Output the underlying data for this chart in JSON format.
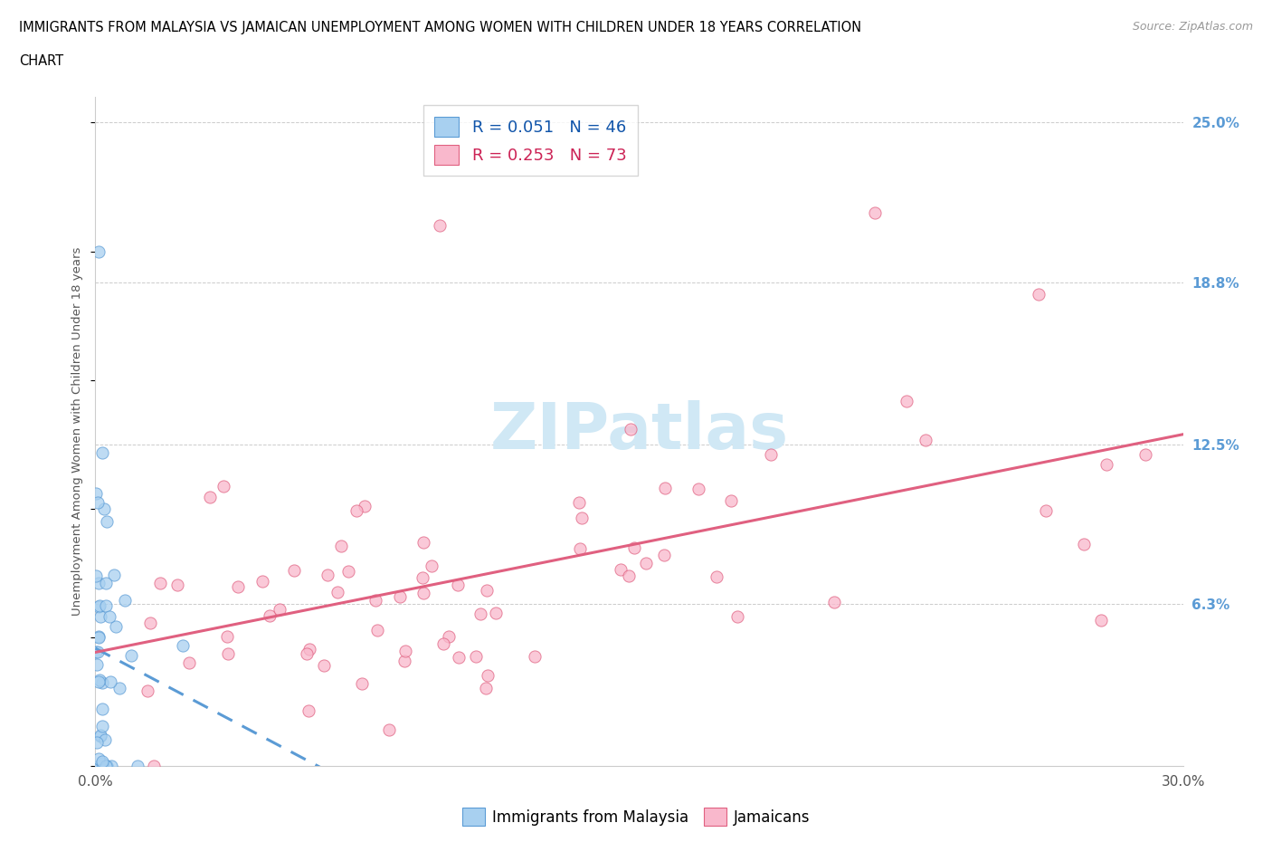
{
  "title_line1": "IMMIGRANTS FROM MALAYSIA VS JAMAICAN UNEMPLOYMENT AMONG WOMEN WITH CHILDREN UNDER 18 YEARS CORRELATION",
  "title_line2": "CHART",
  "source": "Source: ZipAtlas.com",
  "ylabel": "Unemployment Among Women with Children Under 18 years",
  "xlim": [
    0.0,
    0.3
  ],
  "ylim": [
    0.0,
    0.26
  ],
  "yticks": [
    0.063,
    0.125,
    0.188,
    0.25
  ],
  "ytick_labels": [
    "6.3%",
    "12.5%",
    "18.8%",
    "25.0%"
  ],
  "r_malaysia": 0.051,
  "n_malaysia": 46,
  "r_jamaican": 0.253,
  "n_jamaican": 73,
  "color_malaysia": "#A8D0F0",
  "color_jamaican": "#F9B8CC",
  "edge_color_malaysia": "#5B9BD5",
  "edge_color_jamaican": "#E06080",
  "trendline_malaysia": "#5B9BD5",
  "trendline_jamaican": "#E06080",
  "legend_text_color_1": "#1155AA",
  "legend_text_color_2": "#CC2255",
  "watermark_color": "#D0E8F5",
  "watermark_text": "ZIPatlas"
}
